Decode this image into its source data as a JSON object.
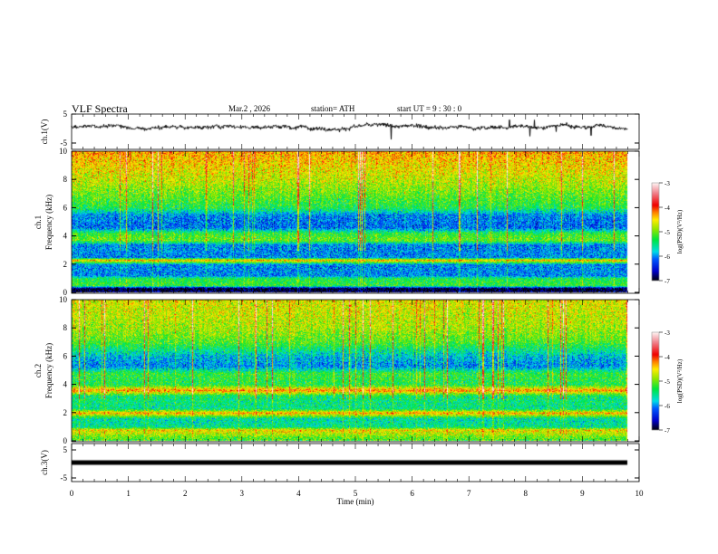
{
  "header": {
    "title": "VLF  Spectra",
    "date": "Mar.2  , 2026",
    "station": "station= ATH",
    "start": "start  UT  =   9  : 30 : 0"
  },
  "chart_data": {
    "type": "heatmap",
    "x_label": "Time  (min)",
    "x_range": [
      0,
      10
    ],
    "x_ticks": [
      "0",
      "1",
      "2",
      "3",
      "4",
      "5",
      "6",
      "7",
      "8",
      "9",
      "10"
    ],
    "data_end_min": 9.8,
    "panels": [
      {
        "name": "ch1-waveform",
        "type": "line",
        "ylabel": "ch.1(V)",
        "ylim": [
          -5,
          5
        ],
        "y_ticks": [
          "5",
          "-5"
        ],
        "baseline": 0.6,
        "noise": 0.5
      },
      {
        "name": "ch1-spectrogram",
        "type": "heatmap",
        "ylabel_top": "ch.1",
        "ylabel": "Frequency  (kHz)",
        "ylim": [
          0,
          10
        ],
        "y_ticks": [
          "0",
          "2",
          "4",
          "6",
          "8",
          "10"
        ],
        "mean_log_psd_profile": [
          [
            0,
            -6.8
          ],
          [
            0.3,
            -7
          ],
          [
            0.5,
            -5.2
          ],
          [
            1,
            -5.3
          ],
          [
            1.2,
            -6
          ],
          [
            2,
            -6
          ],
          [
            2.3,
            -4.3
          ],
          [
            2.5,
            -6
          ],
          [
            3.4,
            -6
          ],
          [
            3.7,
            -5
          ],
          [
            4.2,
            -5.2
          ],
          [
            4.6,
            -6.1
          ],
          [
            5.5,
            -6
          ],
          [
            6,
            -5.3
          ],
          [
            7,
            -5
          ],
          [
            8,
            -4.7
          ],
          [
            10,
            -4.3
          ]
        ]
      },
      {
        "name": "ch2-spectrogram",
        "type": "heatmap",
        "ylabel_top": "ch.2",
        "ylabel": "Frequency  (kHz)",
        "ylim": [
          0,
          10
        ],
        "y_ticks": [
          "0",
          "2",
          "4",
          "6",
          "8",
          "10"
        ],
        "mean_log_psd_profile": [
          [
            0,
            -5.2
          ],
          [
            0.3,
            -5
          ],
          [
            0.8,
            -4.5
          ],
          [
            1,
            -5.5
          ],
          [
            1.6,
            -5.6
          ],
          [
            2,
            -4.3
          ],
          [
            2.3,
            -5.5
          ],
          [
            3.2,
            -5.4
          ],
          [
            3.6,
            -4.2
          ],
          [
            4,
            -5.3
          ],
          [
            4.8,
            -5.2
          ],
          [
            5.3,
            -6
          ],
          [
            6,
            -5.8
          ],
          [
            7,
            -5.1
          ],
          [
            8,
            -4.8
          ],
          [
            10,
            -4.6
          ]
        ]
      },
      {
        "name": "ch3-waveform",
        "type": "line",
        "ylabel": "ch.3(V)",
        "ylim": [
          -5,
          5
        ],
        "y_ticks": [
          "5",
          "-5"
        ],
        "baseline": 0.5,
        "noise": 0.05
      }
    ],
    "colorbar": {
      "label": "log(PSD)(V²/Hz)",
      "range": [
        -7,
        -3
      ],
      "ticks": [
        "-3",
        "-4",
        "-5",
        "-6",
        "-7"
      ]
    }
  }
}
